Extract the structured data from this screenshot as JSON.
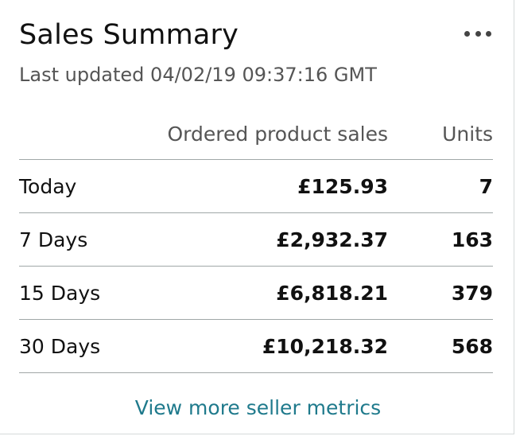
{
  "widget": {
    "title": "Sales Summary",
    "last_updated": "Last updated 04/02/19 09:37:16 GMT",
    "more_icon": "ellipsis-icon"
  },
  "table": {
    "headers": {
      "period": "",
      "sales": "Ordered product sales",
      "units": "Units"
    },
    "rows": [
      {
        "period": "Today",
        "sales": "£125.93",
        "units": "7"
      },
      {
        "period": "7 Days",
        "sales": "£2,932.37",
        "units": "163"
      },
      {
        "period": "15 Days",
        "sales": "£6,818.21",
        "units": "379"
      },
      {
        "period": "30 Days",
        "sales": "£10,218.32",
        "units": "568"
      }
    ]
  },
  "footer": {
    "link_label": "View more seller metrics"
  },
  "colors": {
    "link": "#1f7a8c",
    "text": "#111111",
    "muted": "#555555",
    "divider": "#a0a7a7"
  }
}
